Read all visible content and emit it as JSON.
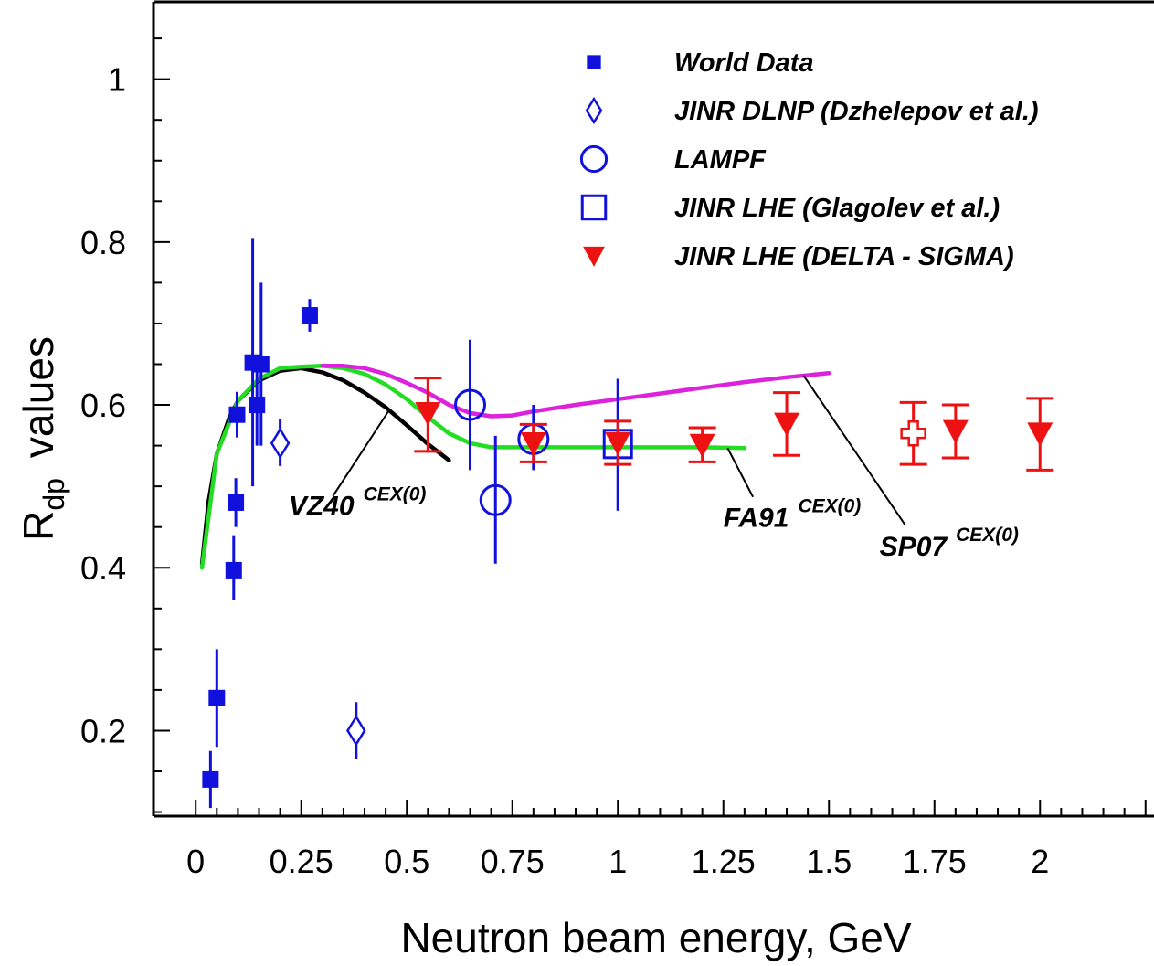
{
  "chart_data": {
    "type": "scatter",
    "xlabel": "Neutron beam energy, GeV",
    "ylabel_main": "R",
    "ylabel_sub": "dp",
    "ylabel_suffix": "values",
    "xlim": [
      -0.1,
      2.27
    ],
    "ylim": [
      0.095,
      1.095
    ],
    "x_ticks": [
      {
        "value": 0,
        "label": "0"
      },
      {
        "value": 0.25,
        "label": "0.25"
      },
      {
        "value": 0.5,
        "label": "0.5"
      },
      {
        "value": 0.75,
        "label": "0.75"
      },
      {
        "value": 1,
        "label": "1"
      },
      {
        "value": 1.25,
        "label": "1.25"
      },
      {
        "value": 1.5,
        "label": "1.5"
      },
      {
        "value": 1.75,
        "label": "1.75"
      },
      {
        "value": 2,
        "label": "2"
      }
    ],
    "y_ticks": [
      {
        "value": 0.2,
        "label": "0.2"
      },
      {
        "value": 0.4,
        "label": "0.4"
      },
      {
        "value": 0.6,
        "label": "0.6"
      },
      {
        "value": 0.8,
        "label": "0.8"
      },
      {
        "value": 1.0,
        "label": "1"
      }
    ],
    "legend_position": "top-right",
    "series": [
      {
        "name": "World  Data",
        "marker": "filled-square",
        "color": "#1111dd",
        "points": [
          {
            "x": 0.035,
            "y": 0.14,
            "lo": 0.105,
            "hi": 0.175
          },
          {
            "x": 0.05,
            "y": 0.24,
            "lo": 0.18,
            "hi": 0.3
          },
          {
            "x": 0.09,
            "y": 0.397,
            "lo": 0.36,
            "hi": 0.44
          },
          {
            "x": 0.095,
            "y": 0.48,
            "lo": 0.45,
            "hi": 0.51
          },
          {
            "x": 0.098,
            "y": 0.588,
            "lo": 0.56,
            "hi": 0.616
          },
          {
            "x": 0.135,
            "y": 0.652,
            "lo": 0.5,
            "hi": 0.805
          },
          {
            "x": 0.145,
            "y": 0.6,
            "lo": 0.55,
            "hi": 0.65
          },
          {
            "x": 0.155,
            "y": 0.65,
            "lo": 0.55,
            "hi": 0.75
          },
          {
            "x": 0.27,
            "y": 0.71,
            "lo": 0.69,
            "hi": 0.73
          }
        ]
      },
      {
        "name": "JINR DLNP (Dzhelepov et al.)",
        "marker": "open-diamond",
        "color": "#1111dd",
        "points": [
          {
            "x": 0.2,
            "y": 0.553,
            "lo": 0.525,
            "hi": 0.583
          },
          {
            "x": 0.38,
            "y": 0.2,
            "lo": 0.165,
            "hi": 0.235
          }
        ]
      },
      {
        "name": "LAMPF",
        "marker": "open-circle",
        "color": "#1111dd",
        "points": [
          {
            "x": 0.65,
            "y": 0.6,
            "lo": 0.52,
            "hi": 0.68
          },
          {
            "x": 0.71,
            "y": 0.483,
            "lo": 0.405,
            "hi": 0.562
          },
          {
            "x": 0.8,
            "y": 0.558,
            "lo": 0.52,
            "hi": 0.6
          }
        ]
      },
      {
        "name": "JINR  LHE  (Glagolev et al.)",
        "marker": "open-square",
        "color": "#1111dd",
        "points": [
          {
            "x": 1.0,
            "y": 0.552,
            "lo": 0.47,
            "hi": 0.632
          }
        ]
      },
      {
        "name": "JINR  LHE  (DELTA - SIGMA)",
        "marker": "filled-triangle-down",
        "color": "#ee1111",
        "points": [
          {
            "x": 0.55,
            "y": 0.59,
            "lo": 0.543,
            "hi": 0.633
          },
          {
            "x": 0.8,
            "y": 0.553,
            "lo": 0.53,
            "hi": 0.576
          },
          {
            "x": 1.0,
            "y": 0.553,
            "lo": 0.527,
            "hi": 0.58
          },
          {
            "x": 1.2,
            "y": 0.551,
            "lo": 0.53,
            "hi": 0.572
          },
          {
            "x": 1.4,
            "y": 0.577,
            "lo": 0.538,
            "hi": 0.615
          },
          {
            "x": 1.8,
            "y": 0.568,
            "lo": 0.535,
            "hi": 0.6
          },
          {
            "x": 2.0,
            "y": 0.565,
            "lo": 0.52,
            "hi": 0.608
          }
        ]
      },
      {
        "marker": "open-cross",
        "color": "#ee1111",
        "points": [
          {
            "x": 1.7,
            "y": 0.565,
            "lo": 0.527,
            "hi": 0.603
          }
        ]
      }
    ],
    "curves": [
      {
        "name": "VZ40",
        "superscript": "CEX(0)",
        "color": "#000000",
        "x": [
          0.015,
          0.03,
          0.05,
          0.08,
          0.1,
          0.15,
          0.2,
          0.25,
          0.3,
          0.35,
          0.4,
          0.45,
          0.5,
          0.55,
          0.6
        ],
        "y": [
          0.405,
          0.48,
          0.54,
          0.585,
          0.605,
          0.63,
          0.642,
          0.645,
          0.64,
          0.63,
          0.615,
          0.597,
          0.575,
          0.552,
          0.532
        ]
      },
      {
        "name": "FA91",
        "superscript": "CEX(0)",
        "color": "#22dd22",
        "x": [
          0.015,
          0.05,
          0.1,
          0.15,
          0.2,
          0.25,
          0.3,
          0.35,
          0.4,
          0.45,
          0.5,
          0.55,
          0.6,
          0.65,
          0.7,
          0.8,
          1.0,
          1.1,
          1.2,
          1.3
        ],
        "y": [
          0.4,
          0.54,
          0.605,
          0.632,
          0.645,
          0.647,
          0.648,
          0.645,
          0.638,
          0.625,
          0.607,
          0.585,
          0.565,
          0.553,
          0.548,
          0.548,
          0.548,
          0.548,
          0.548,
          0.547
        ]
      },
      {
        "name": "SP07",
        "superscript": "CEX(0)",
        "color": "#dd22dd",
        "x": [
          0.3,
          0.35,
          0.4,
          0.45,
          0.5,
          0.55,
          0.6,
          0.65,
          0.7,
          0.75,
          0.8,
          0.9,
          1.0,
          1.1,
          1.2,
          1.3,
          1.4,
          1.5
        ],
        "y": [
          0.648,
          0.648,
          0.645,
          0.638,
          0.627,
          0.615,
          0.6,
          0.59,
          0.586,
          0.587,
          0.592,
          0.6,
          0.607,
          0.614,
          0.621,
          0.628,
          0.634,
          0.639
        ]
      }
    ],
    "annotations": [
      {
        "text": "VZ40",
        "sup": "CEX(0)",
        "label_x": 0.22,
        "label_y": 0.465,
        "leader_from": [
          0.325,
          0.488
        ],
        "leader_to": [
          0.46,
          0.595
        ]
      },
      {
        "text": "FA91",
        "sup": "CEX(0)",
        "label_x": 1.25,
        "label_y": 0.45,
        "leader_from": [
          1.32,
          0.487
        ],
        "leader_to": [
          1.26,
          0.547
        ]
      },
      {
        "text": "SP07",
        "sup": "CEX(0)",
        "label_x": 1.62,
        "label_y": 0.415,
        "leader_from": [
          1.68,
          0.453
        ],
        "leader_to": [
          1.44,
          0.636
        ]
      }
    ]
  }
}
